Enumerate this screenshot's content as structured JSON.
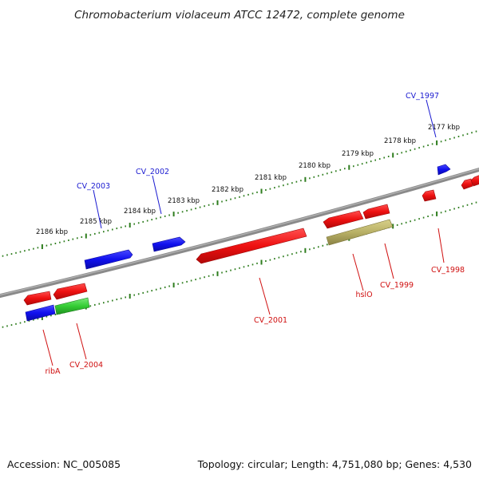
{
  "title": "Chromobacterium violaceum ATCC 12472, complete genome",
  "footer": {
    "accession": "Accession: NC_005085",
    "summary": "Topology: circular; Length: 4,751,080 bp; Genes: 4,530"
  },
  "colors": {
    "backbone": "#8a8a8a",
    "tick": "#2e7d1e",
    "forward_gene": "#1010ee",
    "reverse_gene": "#ee1010",
    "rna_gene": "#33cc33",
    "other_gene": "#b8b066",
    "forward_label": "#1a1ad0",
    "reverse_label": "#d01010"
  },
  "tick_labels": [
    "2177 kbp",
    "2178 kbp",
    "2179 kbp",
    "2180 kbp",
    "2181 kbp",
    "2182 kbp",
    "2183 kbp",
    "2184 kbp",
    "2185 kbp",
    "2186 kbp"
  ],
  "gene_labels": [
    {
      "text": "CV_1997",
      "strand": "forward"
    },
    {
      "text": "CV_2002",
      "strand": "forward"
    },
    {
      "text": "CV_2003",
      "strand": "forward"
    },
    {
      "text": "CV_1998",
      "strand": "reverse"
    },
    {
      "text": "CV_1999",
      "strand": "reverse"
    },
    {
      "text": "hslO",
      "strand": "reverse"
    },
    {
      "text": "CV_2001",
      "strand": "reverse"
    },
    {
      "text": "CV_2004",
      "strand": "reverse"
    },
    {
      "text": "ribA",
      "strand": "reverse"
    }
  ]
}
